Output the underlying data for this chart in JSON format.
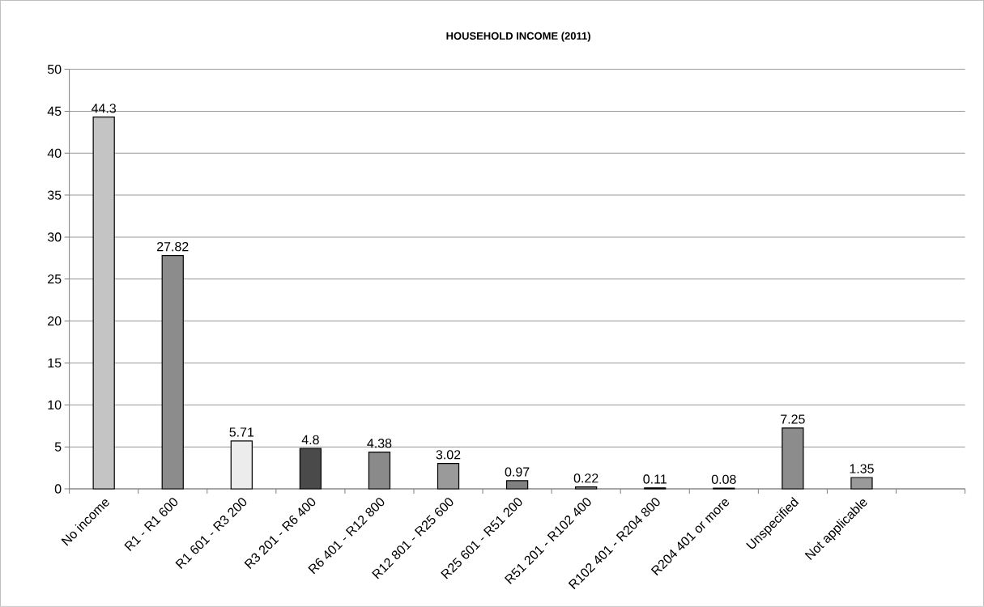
{
  "chart_data": {
    "type": "bar",
    "title": "HOUSEHOLD INCOME (2011)",
    "categories": [
      "No income",
      "R1 - R1 600",
      "R1 601 - R3 200",
      "R3 201 - R6 400",
      "R6 401 - R12 800",
      "R12 801 - R25 600",
      "R25 601 - R51 200",
      "R51 201 - R102 400",
      "R102 401 - R204 800",
      "R204 401 or more",
      "Unspecified",
      "Not applicable",
      null
    ],
    "values": [
      44.3,
      27.82,
      5.71,
      4.8,
      4.38,
      3.02,
      0.97,
      0.22,
      0.11,
      0.08,
      7.25,
      1.35,
      null
    ],
    "colors": [
      "#c4c4c4",
      "#8c8c8c",
      "#ececec",
      "#4a4a4a",
      "#8a8a8a",
      "#9a9a9a",
      "#808080",
      "#909090",
      "#909090",
      "#909090",
      "#8c8c8c",
      "#9a9a9a",
      "#ffffff"
    ],
    "ylim": [
      0,
      50
    ],
    "yticks": [
      0,
      5,
      10,
      15,
      20,
      25,
      30,
      35,
      40,
      45,
      50
    ],
    "grid": "y",
    "data_labels": true
  }
}
